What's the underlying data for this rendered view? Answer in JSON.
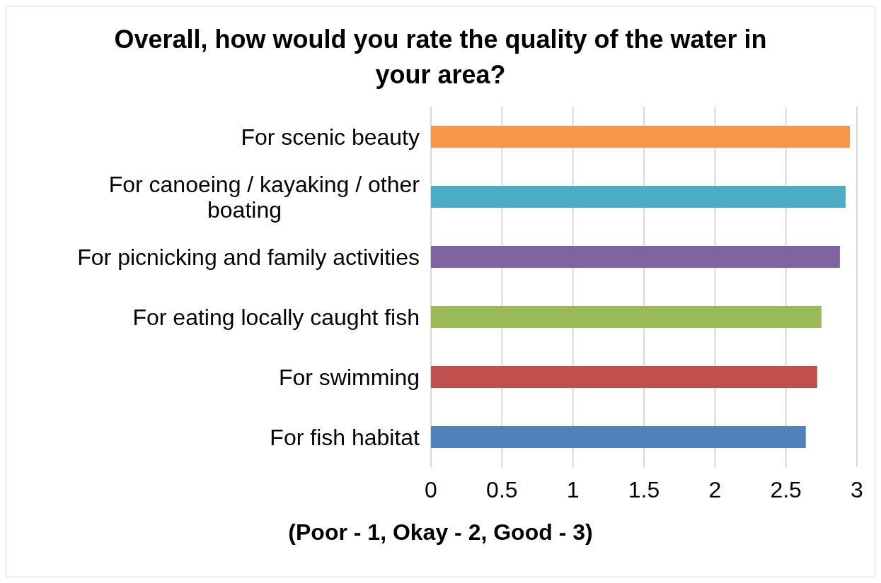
{
  "chart_data": {
    "type": "bar",
    "orientation": "horizontal",
    "title": "Overall, how would you rate the quality of the water in your area?",
    "xlabel": "(Poor - 1, Okay - 2, Good - 3)",
    "categories": [
      "For scenic beauty",
      "For canoeing / kayaking / other boating",
      "For picnicking and family activities",
      "For eating locally caught fish",
      "For swimming",
      "For fish habitat"
    ],
    "values": [
      2.95,
      2.92,
      2.88,
      2.75,
      2.72,
      2.64
    ],
    "colors": [
      "#f79646",
      "#4bacc6",
      "#8064a2",
      "#9bbb59",
      "#c0504d",
      "#4f81bd"
    ],
    "xlim": [
      0,
      3
    ],
    "xticks": [
      0,
      0.5,
      1,
      1.5,
      2,
      2.5,
      3
    ],
    "grid": "x",
    "legend": false
  }
}
